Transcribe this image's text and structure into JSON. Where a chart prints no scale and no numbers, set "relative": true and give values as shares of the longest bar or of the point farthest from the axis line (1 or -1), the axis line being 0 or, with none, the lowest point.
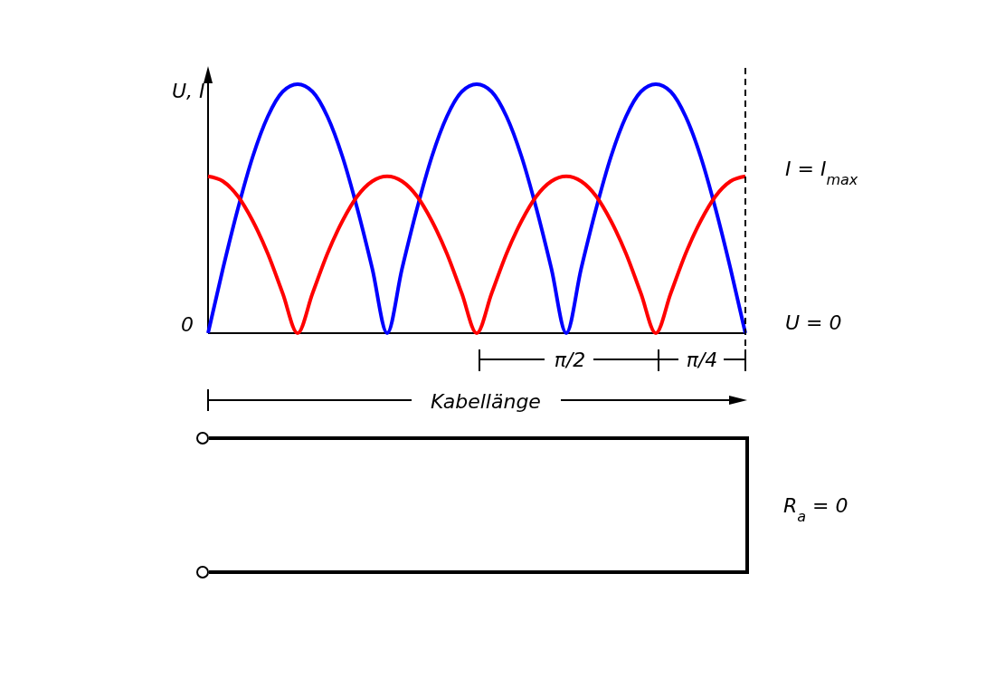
{
  "chart_data": {
    "type": "line",
    "relative": true,
    "ylabel": "U, I",
    "categories": [
      null,
      null,
      null,
      null,
      null,
      null,
      null,
      null,
      null,
      null,
      null,
      null,
      null,
      null,
      null,
      null,
      null,
      null,
      null,
      null,
      null,
      null,
      null,
      null,
      null,
      null,
      null,
      null,
      null,
      null,
      null,
      null,
      null,
      null,
      null,
      null,
      null
    ],
    "series": [
      {
        "color": "#0000ff",
        "values": [
          0,
          0.26,
          0.5,
          0.71,
          0.87,
          0.97,
          1,
          0.97,
          0.87,
          0.71,
          0.5,
          0.26,
          0,
          0.26,
          0.5,
          0.71,
          0.87,
          0.97,
          1,
          0.97,
          0.87,
          0.71,
          0.5,
          0.26,
          0,
          0.26,
          0.5,
          0.71,
          0.87,
          0.97,
          1,
          0.97,
          0.87,
          0.71,
          0.5,
          0.26,
          0
        ]
      },
      {
        "color": "#ff0000",
        "values": [
          0.63,
          0.61,
          0.55,
          0.45,
          0.32,
          0.16,
          0,
          0.16,
          0.32,
          0.45,
          0.55,
          0.61,
          0.63,
          0.61,
          0.55,
          0.45,
          0.32,
          0.16,
          0,
          0.16,
          0.32,
          0.45,
          0.55,
          0.61,
          0.63,
          0.61,
          0.55,
          0.45,
          0.32,
          0.16,
          0,
          0.16,
          0.32,
          0.45,
          0.55,
          0.61,
          0.63
        ]
      }
    ],
    "marker": "none",
    "line_style": "solid",
    "grid": false,
    "legend": false,
    "annotations": [
      "0",
      "I = I$_{max}$",
      "U = 0",
      "π/2",
      "π/4",
      "Kabellänge",
      "R$_{a}$ = 0"
    ]
  }
}
